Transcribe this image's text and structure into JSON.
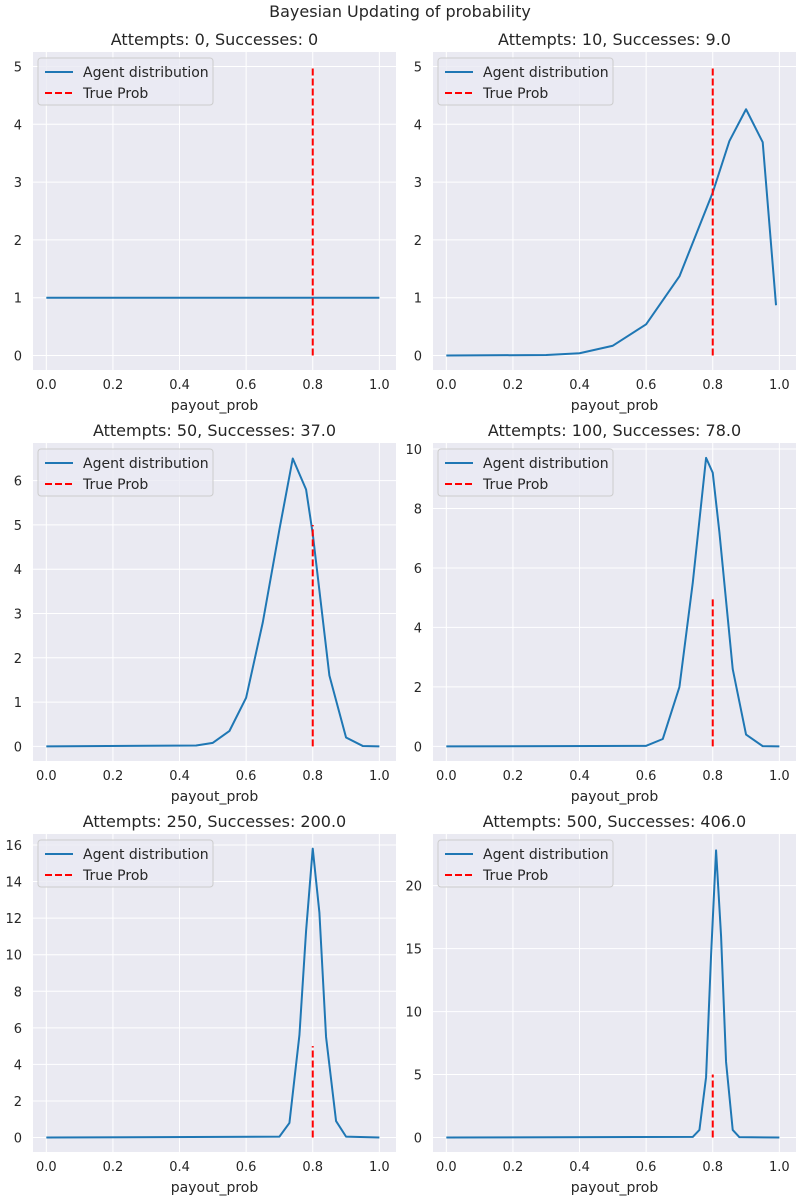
{
  "figure": {
    "title": "Bayesian Updating of probability",
    "colors": {
      "background": "#eaeaf2",
      "grid": "#ffffff",
      "agent": "#1f77b4",
      "true": "#ff0000",
      "text": "#262626"
    }
  },
  "chart_data": [
    {
      "type": "line",
      "title": "Attempts: 0, Successes: 0",
      "attempts": 0,
      "successes": 0,
      "xlabel": "payout_prob",
      "ylabel": "",
      "xlim": [
        -0.04,
        1.05
      ],
      "ylim": [
        -0.25,
        5.25
      ],
      "xticks": [
        "0.0",
        "0.2",
        "0.4",
        "0.6",
        "0.8",
        "1.0"
      ],
      "yticks": [
        "0",
        "1",
        "2",
        "3",
        "4",
        "5"
      ],
      "grid": true,
      "legend": "top-left",
      "series": [
        {
          "name": "Agent distribution",
          "style": "solid",
          "x": [
            0.0,
            0.2,
            0.4,
            0.6,
            0.8,
            1.0
          ],
          "y": [
            1,
            1,
            1,
            1,
            1,
            1
          ]
        },
        {
          "name": "True Prob",
          "style": "dashed",
          "x": [
            0.8,
            0.8
          ],
          "y": [
            0,
            5
          ]
        }
      ]
    },
    {
      "type": "line",
      "title": "Attempts: 10, Successes: 9.0",
      "attempts": 10,
      "successes": 9,
      "xlabel": "payout_prob",
      "ylabel": "",
      "xlim": [
        -0.04,
        1.05
      ],
      "ylim": [
        -0.25,
        5.25
      ],
      "xticks": [
        "0.0",
        "0.2",
        "0.4",
        "0.6",
        "0.8",
        "1.0"
      ],
      "yticks": [
        "0",
        "1",
        "2",
        "3",
        "4",
        "5"
      ],
      "grid": true,
      "legend": "top-left",
      "series": [
        {
          "name": "Agent distribution",
          "style": "solid",
          "x": [
            0.0,
            0.3,
            0.4,
            0.5,
            0.6,
            0.7,
            0.8,
            0.85,
            0.9,
            0.95,
            0.99
          ],
          "y": [
            0,
            0.01,
            0.04,
            0.17,
            0.54,
            1.37,
            2.82,
            3.71,
            4.26,
            3.69,
            0.87
          ]
        },
        {
          "name": "True Prob",
          "style": "dashed",
          "x": [
            0.8,
            0.8
          ],
          "y": [
            0,
            5
          ]
        }
      ]
    },
    {
      "type": "line",
      "title": "Attempts: 50, Successes: 37.0",
      "attempts": 50,
      "successes": 37,
      "xlabel": "payout_prob",
      "ylabel": "",
      "xlim": [
        -0.04,
        1.05
      ],
      "ylim": [
        -0.33,
        6.85
      ],
      "xticks": [
        "0.0",
        "0.2",
        "0.4",
        "0.6",
        "0.8",
        "1.0"
      ],
      "yticks": [
        "0",
        "1",
        "2",
        "3",
        "4",
        "5",
        "6"
      ],
      "grid": true,
      "legend": "top-left",
      "series": [
        {
          "name": "Agent distribution",
          "style": "solid",
          "x": [
            0.0,
            0.45,
            0.5,
            0.55,
            0.6,
            0.65,
            0.7,
            0.74,
            0.78,
            0.8,
            0.85,
            0.9,
            0.95,
            1.0
          ],
          "y": [
            0,
            0.02,
            0.08,
            0.35,
            1.1,
            2.8,
            4.9,
            6.5,
            5.8,
            4.8,
            1.6,
            0.2,
            0.01,
            0
          ]
        },
        {
          "name": "True Prob",
          "style": "dashed",
          "x": [
            0.8,
            0.8
          ],
          "y": [
            0,
            5
          ]
        }
      ]
    },
    {
      "type": "line",
      "title": "Attempts: 100, Successes: 78.0",
      "attempts": 100,
      "successes": 78,
      "xlabel": "payout_prob",
      "ylabel": "",
      "xlim": [
        -0.04,
        1.05
      ],
      "ylim": [
        -0.49,
        10.2
      ],
      "xticks": [
        "0.0",
        "0.2",
        "0.4",
        "0.6",
        "0.8",
        "1.0"
      ],
      "yticks": [
        "0",
        "2",
        "4",
        "6",
        "8",
        "10"
      ],
      "grid": true,
      "legend": "top-left",
      "series": [
        {
          "name": "Agent distribution",
          "style": "solid",
          "x": [
            0.0,
            0.6,
            0.65,
            0.7,
            0.74,
            0.78,
            0.8,
            0.82,
            0.86,
            0.9,
            0.95,
            1.0
          ],
          "y": [
            0,
            0.02,
            0.25,
            2.0,
            5.5,
            9.7,
            9.2,
            7.2,
            2.6,
            0.4,
            0.01,
            0
          ]
        },
        {
          "name": "True Prob",
          "style": "dashed",
          "x": [
            0.8,
            0.8
          ],
          "y": [
            0,
            5
          ]
        }
      ]
    },
    {
      "type": "line",
      "title": "Attempts: 250, Successes: 200.0",
      "attempts": 250,
      "successes": 200,
      "xlabel": "payout_prob",
      "ylabel": "",
      "xlim": [
        -0.04,
        1.05
      ],
      "ylim": [
        -0.79,
        16.6
      ],
      "xticks": [
        "0.0",
        "0.2",
        "0.4",
        "0.6",
        "0.8",
        "1.0"
      ],
      "yticks": [
        "0",
        "2",
        "4",
        "6",
        "8",
        "10",
        "12",
        "14",
        "16"
      ],
      "grid": true,
      "legend": "top-left",
      "series": [
        {
          "name": "Agent distribution",
          "style": "solid",
          "x": [
            0.0,
            0.7,
            0.73,
            0.76,
            0.78,
            0.8,
            0.82,
            0.84,
            0.87,
            0.9,
            1.0
          ],
          "y": [
            0,
            0.05,
            0.8,
            5.6,
            11.3,
            15.8,
            12.3,
            5.5,
            0.9,
            0.05,
            0
          ]
        },
        {
          "name": "True Prob",
          "style": "dashed",
          "x": [
            0.8,
            0.8
          ],
          "y": [
            0,
            5
          ]
        }
      ]
    },
    {
      "type": "line",
      "title": "Attempts: 500, Successes: 406.0",
      "attempts": 500,
      "successes": 406,
      "xlabel": "payout_prob",
      "ylabel": "",
      "xlim": [
        -0.04,
        1.05
      ],
      "ylim": [
        -1.15,
        24.1
      ],
      "xticks": [
        "0.0",
        "0.2",
        "0.4",
        "0.6",
        "0.8",
        "1.0"
      ],
      "yticks": [
        "0",
        "5",
        "10",
        "15",
        "20"
      ],
      "grid": true,
      "legend": "top-left",
      "series": [
        {
          "name": "Agent distribution",
          "style": "solid",
          "x": [
            0.0,
            0.74,
            0.76,
            0.78,
            0.795,
            0.81,
            0.825,
            0.84,
            0.86,
            0.88,
            1.0
          ],
          "y": [
            0,
            0.05,
            0.6,
            4.8,
            14.5,
            22.8,
            16.0,
            6.0,
            0.6,
            0.03,
            0
          ]
        },
        {
          "name": "True Prob",
          "style": "dashed",
          "x": [
            0.8,
            0.8
          ],
          "y": [
            0,
            5
          ]
        }
      ]
    }
  ]
}
